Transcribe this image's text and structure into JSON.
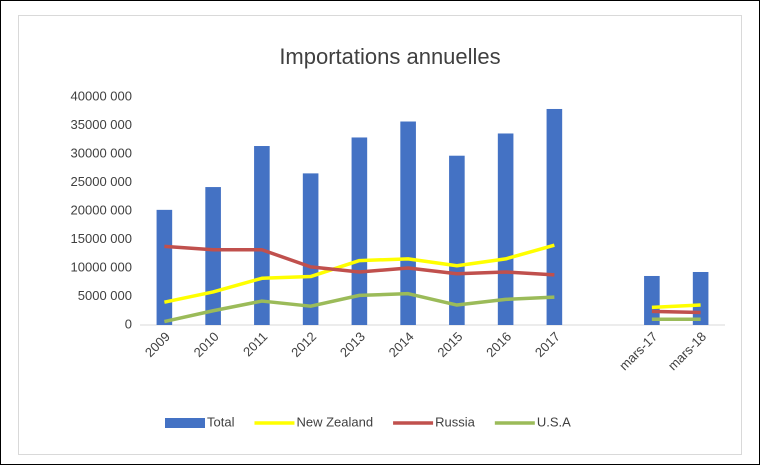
{
  "chart_data": {
    "type": "bar_line",
    "title": "Importations annuelles",
    "categories": [
      "2009",
      "2010",
      "2011",
      "2012",
      "2013",
      "2014",
      "2015",
      "2016",
      "2017",
      null,
      "mars-17",
      "mars-18"
    ],
    "series": [
      {
        "name": "Total",
        "type": "bar",
        "color": "#4472c4",
        "values": [
          20200000,
          24200000,
          31400000,
          26600000,
          32900000,
          35700000,
          29700000,
          33600000,
          37900000,
          null,
          8600000,
          9300000
        ]
      },
      {
        "name": "New Zealand",
        "type": "line",
        "color": "#ffff00",
        "values": [
          4000000,
          5800000,
          8200000,
          8500000,
          11300000,
          11600000,
          10400000,
          11600000,
          14000000,
          null,
          3100000,
          3500000
        ]
      },
      {
        "name": "Russia",
        "type": "line",
        "color": "#c0504d",
        "values": [
          13800000,
          13200000,
          13200000,
          10200000,
          9300000,
          10000000,
          9000000,
          9300000,
          8800000,
          null,
          2400000,
          2200000
        ]
      },
      {
        "name": "U.S.A",
        "type": "line",
        "color": "#9bbb59",
        "values": [
          600000,
          2500000,
          4200000,
          3300000,
          5200000,
          5500000,
          3500000,
          4500000,
          4900000,
          null,
          1000000,
          1000000
        ]
      }
    ],
    "ylim": [
      0,
      40000000
    ],
    "yticks": [
      0,
      {
        "value": 5000000,
        "label": "5000 000"
      },
      {
        "value": 10000000,
        "label": "10000 000"
      },
      {
        "value": 15000000,
        "label": "15000 000"
      },
      {
        "value": 20000000,
        "label": "20000 000"
      },
      {
        "value": 25000000,
        "label": "25000 000"
      },
      {
        "value": 30000000,
        "label": "30000 000"
      },
      {
        "value": 35000000,
        "label": "35000 000"
      },
      {
        "value": 40000000,
        "label": "40000 000"
      }
    ],
    "legend": "bottom"
  }
}
